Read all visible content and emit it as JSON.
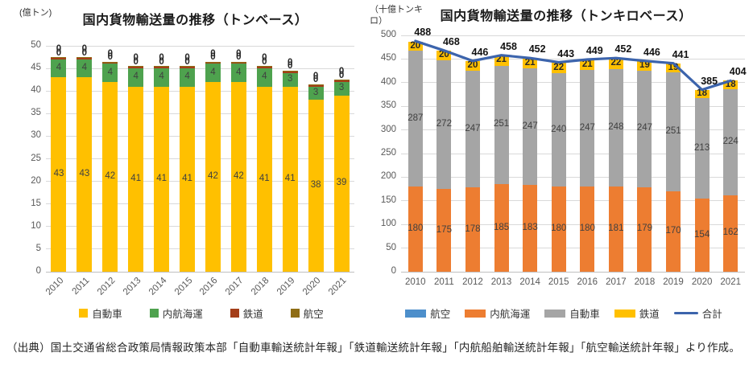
{
  "source_note": "（出典）国土交通省総合政策局情報政策本部「自動車輸送統計年報」「鉄道輸送統計年報」「内航船舶輸送統計年報」「航空輸送統計年報」より作成。",
  "chart_data": [
    {
      "type": "bar",
      "stacked": true,
      "title": "国内貨物輸送量の推移（トンベース）",
      "unit_label": "(億トン)",
      "categories": [
        "2010",
        "2011",
        "2012",
        "2013",
        "2014",
        "2015",
        "2016",
        "2017",
        "2018",
        "2019",
        "2020",
        "2021"
      ],
      "ylim": [
        0,
        50
      ],
      "ytick_step": 5,
      "grid": true,
      "series": [
        {
          "name": "自動車",
          "color": "#FFC000",
          "values": [
            43,
            43,
            42,
            41,
            41,
            41,
            42,
            42,
            41,
            41,
            38,
            39
          ]
        },
        {
          "name": "内航海運",
          "color": "#4EA24E",
          "values": [
            4,
            4,
            4,
            4,
            4,
            4,
            4,
            4,
            4,
            3,
            3,
            3
          ]
        },
        {
          "name": "鉄道",
          "color": "#A43E19",
          "values": [
            0.4,
            0.4,
            0.4,
            0.4,
            0.4,
            0.4,
            0.4,
            0.4,
            0.4,
            0.4,
            0.4,
            0.4
          ],
          "labels": [
            "0",
            "0",
            "0",
            "0",
            "0",
            "0",
            "0",
            "0",
            "0",
            "0",
            "0",
            "0"
          ],
          "label_placement": "top"
        },
        {
          "name": "航空",
          "color": "#8F6D15",
          "values": [
            0.1,
            0.1,
            0.1,
            0.1,
            0.1,
            0.1,
            0.1,
            0.1,
            0.1,
            0.1,
            0.1,
            0.1
          ],
          "labels": [
            "0",
            "0",
            "0",
            "0",
            "0",
            "0",
            "0",
            "0",
            "0",
            "0",
            "0",
            "0"
          ],
          "label_placement": "top"
        }
      ],
      "legend": [
        {
          "label": "自動車",
          "color": "#FFC000",
          "marker": "square"
        },
        {
          "label": "内航海運",
          "color": "#4EA24E",
          "marker": "square"
        },
        {
          "label": "鉄道",
          "color": "#A43E19",
          "marker": "square"
        },
        {
          "label": "航空",
          "color": "#8F6D15",
          "marker": "square"
        }
      ]
    },
    {
      "type": "bar",
      "stacked": true,
      "title": "国内貨物輸送量の推移（トンキロベース）",
      "unit_label": "（十億トンキ\nロ）",
      "categories": [
        "2010",
        "2011",
        "2012",
        "2013",
        "2014",
        "2015",
        "2016",
        "2017",
        "2018",
        "2019",
        "2020",
        "2021"
      ],
      "ylim": [
        0,
        500
      ],
      "ytick_step": 50,
      "grid": true,
      "series": [
        {
          "name": "航空",
          "color": "#4D8FCB",
          "values": [
            0,
            0,
            0,
            0,
            0,
            0,
            0,
            0,
            0,
            0,
            0,
            0
          ],
          "show_labels": false
        },
        {
          "name": "内航海運",
          "color": "#ED7D31",
          "values": [
            180,
            175,
            178,
            185,
            183,
            180,
            180,
            181,
            179,
            170,
            154,
            162
          ]
        },
        {
          "name": "自動車",
          "color": "#A5A5A5",
          "values": [
            287,
            272,
            247,
            251,
            247,
            240,
            247,
            248,
            247,
            251,
            213,
            224
          ]
        },
        {
          "name": "鉄道",
          "color": "#FFC000",
          "values": [
            20,
            20,
            20,
            21,
            21,
            22,
            21,
            22,
            19,
            19,
            18,
            18
          ],
          "label_bold": true
        }
      ],
      "line_series": {
        "name": "合計",
        "color": "#3C64AC",
        "values": [
          488,
          468,
          446,
          458,
          452,
          443,
          449,
          452,
          446,
          441,
          385,
          404
        ]
      },
      "legend": [
        {
          "label": "航空",
          "color": "#4D8FCB",
          "marker": "rect"
        },
        {
          "label": "内航海運",
          "color": "#ED7D31",
          "marker": "rect"
        },
        {
          "label": "自動車",
          "color": "#A5A5A5",
          "marker": "rect"
        },
        {
          "label": "鉄道",
          "color": "#FFC000",
          "marker": "rect"
        },
        {
          "label": "合計",
          "color": "#3C64AC",
          "marker": "line"
        }
      ]
    }
  ]
}
